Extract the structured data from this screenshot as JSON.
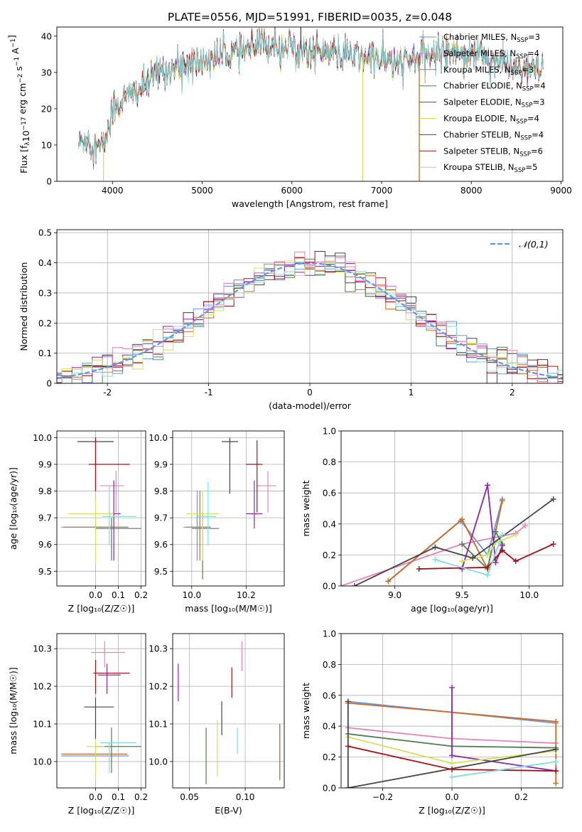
{
  "title": "PLATE=0556, MJD=51991, FIBERID=0035, z=0.048",
  "colors": [
    "#6495ed",
    "#e882bd",
    "#d2691e",
    "#4f7f4f",
    "#8e24aa",
    "#d4e157",
    "#444444",
    "#a50f15",
    "#80dede"
  ],
  "chart_data": [
    {
      "id": "spectrum",
      "type": "line",
      "xlabel": "wavelength [Angstrom, rest frame]",
      "ylabel": "Flux [f_λ 10^-17 erg cm^-2 s^-1 A^-1]",
      "xlim": [
        3380,
        9020
      ],
      "ylim": [
        0,
        42.5
      ],
      "xticks": [
        4000,
        5000,
        6000,
        7000,
        8000,
        9000
      ],
      "yticks": [
        0,
        10,
        20,
        30,
        40
      ],
      "legend": "upper right",
      "continuum": {
        "x": [
          3620,
          3700,
          3800,
          3850,
          3900,
          3950,
          4000,
          4100,
          4200,
          4300,
          4400,
          4500,
          4700,
          4900,
          5000,
          5100,
          5200,
          5300,
          5400,
          5500,
          5600,
          5800,
          6000,
          6200,
          6400,
          6500,
          6600,
          6700,
          6800,
          6900,
          7000,
          7100,
          7200,
          7300,
          7400,
          7500,
          7600,
          7700,
          7800,
          8000,
          8200,
          8400,
          8500,
          8600,
          8700,
          8800
        ],
        "y": [
          10,
          12,
          10,
          9,
          10,
          14,
          20,
          22,
          24,
          25,
          27,
          30,
          31.5,
          32.5,
          33,
          34,
          34.5,
          35,
          35.5,
          36,
          37,
          38,
          37,
          36,
          35.5,
          35,
          35,
          34.5,
          34,
          34,
          33.5,
          33,
          32.5,
          33,
          34,
          34.5,
          35,
          36,
          36,
          35.5,
          34,
          32,
          31,
          31,
          30.5,
          30
        ]
      },
      "spikes": [
        {
          "series": 5,
          "x": 3900,
          "y": 0
        },
        {
          "series": 5,
          "x": 6790,
          "y": 0
        },
        {
          "series": 2,
          "x": 7420,
          "y": 0
        },
        {
          "series": 6,
          "x": 6100,
          "y": 42.5
        }
      ],
      "series": [
        {
          "name": "Chabrier MILES, ",
          "nssp": "=3"
        },
        {
          "name": "Salpeter MILES, ",
          "nssp": "=4"
        },
        {
          "name": "Kroupa MILES, ",
          "nssp": "=3"
        },
        {
          "name": "Chabrier ELODIE, ",
          "nssp": "=4"
        },
        {
          "name": "Salpeter ELODIE, ",
          "nssp": "=3"
        },
        {
          "name": "Kroupa ELODIE, ",
          "nssp": "=4"
        },
        {
          "name": "Chabrier STELIB, ",
          "nssp": "=4"
        },
        {
          "name": "Salpeter STELIB, ",
          "nssp": "=6"
        },
        {
          "name": "Kroupa STELIB, ",
          "nssp": "=5"
        }
      ],
      "nssp_label": "N",
      "nssp_sub": "SSP"
    },
    {
      "id": "residuals",
      "type": "histogram",
      "xlabel": "(data-model)/error",
      "ylabel": "Normed distribution",
      "xlim": [
        -2.5,
        2.5
      ],
      "ylim": [
        0,
        0.51
      ],
      "xticks": [
        -2,
        -1,
        0,
        1,
        2
      ],
      "yticks": [
        0,
        0.1,
        0.2,
        0.3,
        0.4,
        0.5
      ],
      "bin_width": 0.1,
      "grid": true,
      "legend_label": "𝒩(0,1)"
    },
    {
      "id": "age-vs-Z",
      "type": "errorbar",
      "xlabel": "Z [log₁₀(Z/Z☉)]",
      "ylabel": "age  [log₁₀(age/yr)]",
      "xlim": [
        -0.17,
        0.22
      ],
      "ylim": [
        9.445,
        10.025
      ],
      "xticks": [
        0.0,
        0.1,
        0.2
      ],
      "xticklabels": [
        "0.0",
        "0.1",
        "0.2"
      ],
      "yticks": [
        9.5,
        9.6,
        9.7,
        9.8,
        9.9,
        10.0
      ],
      "yticklabels": [
        "9.5",
        "9.6",
        "9.7",
        "9.8",
        "9.9",
        "10.0"
      ],
      "points": [
        {
          "s": 0,
          "x": 0.0,
          "y": 9.665,
          "xl": -0.15,
          "xh": 0.145,
          "yl": 9.66,
          "yh": 9.67
        },
        {
          "s": 1,
          "x": 0.09,
          "y": 9.82,
          "xl": 0.02,
          "xh": 0.125,
          "yl": 9.72,
          "yh": 9.875
        },
        {
          "s": 2,
          "x": 0.0,
          "y": 9.665,
          "xl": -0.14,
          "xh": 0.14,
          "yl": 9.66,
          "yh": 9.67
        },
        {
          "s": 3,
          "x": 0.07,
          "y": 9.66,
          "xl": 0.0,
          "xh": 0.2,
          "yl": 9.54,
          "yh": 9.7
        },
        {
          "s": 4,
          "x": 0.08,
          "y": 9.715,
          "xl": 0.06,
          "xh": 0.11,
          "yl": 9.54,
          "yh": 9.84
        },
        {
          "s": 5,
          "x": 0.0,
          "y": 9.715,
          "xl": -0.12,
          "xh": 0.08,
          "yl": 9.53,
          "yh": 9.77
        },
        {
          "s": 6,
          "x": 0.0,
          "y": 9.985,
          "xl": -0.08,
          "xh": 0.08,
          "yl": 9.8,
          "yh": 10.0
        },
        {
          "s": 7,
          "x": 0.0,
          "y": 9.9,
          "xl": -0.03,
          "xh": 0.15,
          "yl": 9.8,
          "yh": 10.0
        },
        {
          "s": 8,
          "x": 0.06,
          "y": 9.705,
          "xl": 0.03,
          "xh": 0.18,
          "yl": 9.6,
          "yh": 9.82
        }
      ]
    },
    {
      "id": "age-vs-mass",
      "type": "errorbar",
      "xlabel": "mass [log₁₀(M/M☉)]",
      "ylabel": "",
      "xlim": [
        9.93,
        10.34
      ],
      "ylim": [
        9.445,
        10.025
      ],
      "xticks": [
        10.0,
        10.2
      ],
      "xticklabels": [
        "10.0",
        "10.2"
      ],
      "yticks": [
        9.5,
        9.6,
        9.7,
        9.8,
        9.9,
        10.0
      ],
      "yticklabels": [
        "9.5",
        "9.6",
        "9.7",
        "9.8",
        "9.9",
        "10.0"
      ],
      "points": [
        {
          "s": 0,
          "x": 10.02,
          "y": 9.665,
          "xl": 9.97,
          "xh": 10.07,
          "yl": 9.54,
          "yh": 9.8
        },
        {
          "s": 1,
          "x": 10.28,
          "y": 9.82,
          "xl": 10.24,
          "xh": 10.31,
          "yl": 9.72,
          "yh": 9.875
        },
        {
          "s": 2,
          "x": 10.03,
          "y": 9.665,
          "xl": 9.98,
          "xh": 10.07,
          "yl": 9.54,
          "yh": 9.8
        },
        {
          "s": 3,
          "x": 10.04,
          "y": 9.66,
          "xl": 10.0,
          "xh": 10.1,
          "yl": 9.47,
          "yh": 9.72
        },
        {
          "s": 4,
          "x": 10.23,
          "y": 9.715,
          "xl": 10.2,
          "xh": 10.26,
          "yl": 9.66,
          "yh": 9.84
        },
        {
          "s": 5,
          "x": 10.04,
          "y": 9.715,
          "xl": 9.98,
          "xh": 10.1,
          "yl": 9.54,
          "yh": 9.8
        },
        {
          "s": 6,
          "x": 10.14,
          "y": 9.985,
          "xl": 10.11,
          "xh": 10.17,
          "yl": 9.79,
          "yh": 10.0
        },
        {
          "s": 7,
          "x": 10.24,
          "y": 9.9,
          "xl": 10.2,
          "xh": 10.26,
          "yl": 9.72,
          "yh": 9.99
        },
        {
          "s": 8,
          "x": 10.06,
          "y": 9.705,
          "xl": 10.02,
          "xh": 10.09,
          "yl": 9.6,
          "yh": 9.835
        }
      ]
    },
    {
      "id": "weight-vs-age",
      "type": "line",
      "xlabel": "age  [log₁₀(age/yr)]",
      "ylabel": "mass weight",
      "xlim": [
        8.6,
        10.25
      ],
      "ylim": [
        0,
        1.0
      ],
      "xticks": [
        9.0,
        9.5,
        10.0
      ],
      "xticklabels": [
        "9.0",
        "9.5",
        "10.0"
      ],
      "yticks": [
        0,
        0.2,
        0.4,
        0.6,
        0.8,
        1.0
      ],
      "yticklabels": [
        "0.0",
        "0.2",
        "0.4",
        "0.6",
        "0.8",
        "1.0"
      ],
      "lines": [
        {
          "s": 0,
          "x": [
            8.95,
            9.49,
            9.69,
            9.8
          ],
          "y": [
            0.03,
            0.42,
            0.2,
            0.56
          ]
        },
        {
          "s": 1,
          "x": [
            8.6,
            9.5,
            9.9,
            9.97
          ],
          "y": [
            0.0,
            0.27,
            0.34,
            0.39
          ]
        },
        {
          "s": 2,
          "x": [
            8.95,
            9.5,
            9.69,
            9.8
          ],
          "y": [
            0.03,
            0.43,
            0.11,
            0.55
          ]
        },
        {
          "s": 3,
          "x": [
            9.5,
            9.69,
            9.75,
            9.8
          ],
          "y": [
            0.27,
            0.11,
            0.35,
            0.27
          ]
        },
        {
          "s": 4,
          "x": [
            9.5,
            9.69,
            9.75,
            9.8
          ],
          "y": [
            0.11,
            0.65,
            0.15,
            0.26
          ]
        },
        {
          "s": 5,
          "x": [
            9.5,
            9.69,
            9.75,
            9.9
          ],
          "y": [
            0.16,
            0.2,
            0.28,
            0.33
          ]
        },
        {
          "s": 6,
          "x": [
            8.7,
            9.3,
            9.58,
            10.18
          ],
          "y": [
            0.0,
            0.25,
            0.18,
            0.56
          ]
        },
        {
          "s": 7,
          "x": [
            9.18,
            9.69,
            9.8,
            9.9,
            10.18
          ],
          "y": [
            0.11,
            0.12,
            0.23,
            0.16,
            0.27
          ]
        },
        {
          "s": 8,
          "x": [
            9.3,
            9.69,
            9.8
          ],
          "y": [
            0.17,
            0.07,
            0.33
          ]
        }
      ]
    },
    {
      "id": "mass-vs-Z",
      "type": "errorbar",
      "xlabel": "Z [log₁₀(Z/Z☉)]",
      "ylabel": "mass [log₁₀(M/M☉)]",
      "xlim": [
        -0.17,
        0.22
      ],
      "ylim": [
        9.93,
        10.34
      ],
      "xticks": [
        0.0,
        0.1,
        0.2
      ],
      "xticklabels": [
        "0.0",
        "0.1",
        "0.2"
      ],
      "yticks": [
        10.0,
        10.1,
        10.2,
        10.3
      ],
      "yticklabels": [
        "10.0",
        "10.1",
        "10.2",
        "10.3"
      ],
      "points": [
        {
          "s": 0,
          "x": 0.0,
          "y": 10.015,
          "xl": -0.15,
          "xh": 0.145,
          "yl": 10.01,
          "yh": 10.02
        },
        {
          "s": 1,
          "x": 0.04,
          "y": 10.29,
          "xl": -0.02,
          "xh": 0.13,
          "yl": 10.25,
          "yh": 10.32
        },
        {
          "s": 2,
          "x": 0.0,
          "y": 10.02,
          "xl": -0.15,
          "xh": 0.14,
          "yl": 10.015,
          "yh": 10.025
        },
        {
          "s": 3,
          "x": 0.07,
          "y": 10.04,
          "xl": 0.0,
          "xh": 0.2,
          "yl": 9.97,
          "yh": 10.09
        },
        {
          "s": 4,
          "x": 0.05,
          "y": 10.23,
          "xl": 0.01,
          "xh": 0.11,
          "yl": 10.18,
          "yh": 10.26
        },
        {
          "s": 5,
          "x": 0.0,
          "y": 10.04,
          "xl": -0.04,
          "xh": 0.04,
          "yl": 9.96,
          "yh": 10.11
        },
        {
          "s": 6,
          "x": 0.0,
          "y": 10.145,
          "xl": -0.05,
          "xh": 0.08,
          "yl": 10.06,
          "yh": 10.17
        },
        {
          "s": 7,
          "x": 0.0,
          "y": 10.235,
          "xl": -0.01,
          "xh": 0.15,
          "yl": 10.18,
          "yh": 10.27
        },
        {
          "s": 8,
          "x": 0.06,
          "y": 10.05,
          "xl": 0.02,
          "xh": 0.18,
          "yl": 9.97,
          "yh": 10.05
        }
      ]
    },
    {
      "id": "mass-vs-ebv",
      "type": "errorbar",
      "xlabel": "E(B-V)",
      "ylabel": "",
      "xlim": [
        0.035,
        0.135
      ],
      "ylim": [
        9.93,
        10.34
      ],
      "xticks": [
        0.05,
        0.1
      ],
      "xticklabels": [
        "0.05",
        "0.10"
      ],
      "yticks": [
        10.0,
        10.1,
        10.2,
        10.3
      ],
      "yticklabels": [
        "10.0",
        "10.1",
        "10.2",
        "10.3"
      ],
      "points": [
        {
          "s": 0,
          "x": 0.131,
          "y": 10.04,
          "yl": 9.96,
          "yh": 10.1
        },
        {
          "s": 1,
          "x": 0.097,
          "y": 10.28,
          "yl": 10.24,
          "yh": 10.32
        },
        {
          "s": 2,
          "x": 0.131,
          "y": 10.03,
          "yl": 9.95,
          "yh": 10.1
        },
        {
          "s": 3,
          "x": 0.065,
          "y": 10.04,
          "yl": 9.94,
          "yh": 10.09
        },
        {
          "s": 4,
          "x": 0.04,
          "y": 10.21,
          "yl": 10.16,
          "yh": 10.26
        },
        {
          "s": 5,
          "x": 0.075,
          "y": 10.04,
          "yl": 9.96,
          "yh": 10.11
        },
        {
          "s": 6,
          "x": 0.079,
          "y": 10.14,
          "yl": 10.07,
          "yh": 10.16
        },
        {
          "s": 7,
          "x": 0.088,
          "y": 10.22,
          "yl": 10.17,
          "yh": 10.25
        },
        {
          "s": 8,
          "x": 0.093,
          "y": 10.05,
          "yl": 10.02,
          "yh": 10.09
        }
      ]
    },
    {
      "id": "weight-vs-Z",
      "type": "line",
      "xlabel": "Z [log₁₀(Z/Z☉)]",
      "ylabel": "mass weight",
      "xlim": [
        -0.32,
        0.32
      ],
      "ylim": [
        0,
        1.0
      ],
      "xticks": [
        -0.2,
        0.0,
        0.2
      ],
      "xticklabels": [
        "−0.2",
        "0.0",
        "0.2"
      ],
      "yticks": [
        0,
        0.2,
        0.4,
        0.6,
        0.8,
        1.0
      ],
      "yticklabels": [
        "0.0",
        "0.2",
        "0.4",
        "0.6",
        "0.8",
        "1.0"
      ],
      "lines": [
        {
          "s": 0,
          "x": [
            -0.3,
            0.3
          ],
          "y": [
            0.56,
            0.42
          ]
        },
        {
          "s": 1,
          "x": [
            -0.3,
            0.0,
            0.3
          ],
          "y": [
            0.39,
            0.32,
            0.29
          ]
        },
        {
          "s": 2,
          "x": [
            -0.3,
            0.3,
            0.3
          ],
          "y": [
            0.55,
            0.43,
            0.03
          ]
        },
        {
          "s": 3,
          "x": [
            -0.3,
            0.0,
            0.3
          ],
          "y": [
            0.35,
            0.27,
            0.26
          ]
        },
        {
          "s": 4,
          "x": [
            0.0,
            0.0,
            0.3
          ],
          "y": [
            0.65,
            0.21,
            0.11
          ]
        },
        {
          "s": 5,
          "x": [
            -0.3,
            0.0,
            0.3
          ],
          "y": [
            0.33,
            0.16,
            0.24
          ]
        },
        {
          "s": 6,
          "x": [
            -0.3,
            -0.3,
            0.3
          ],
          "y": [
            0.56,
            0.0,
            0.25
          ]
        },
        {
          "s": 7,
          "x": [
            -0.3,
            0.0,
            0.3
          ],
          "y": [
            0.27,
            0.12,
            0.11
          ]
        },
        {
          "s": 8,
          "x": [
            0.0,
            0.3
          ],
          "y": [
            0.07,
            0.17
          ]
        }
      ]
    }
  ]
}
